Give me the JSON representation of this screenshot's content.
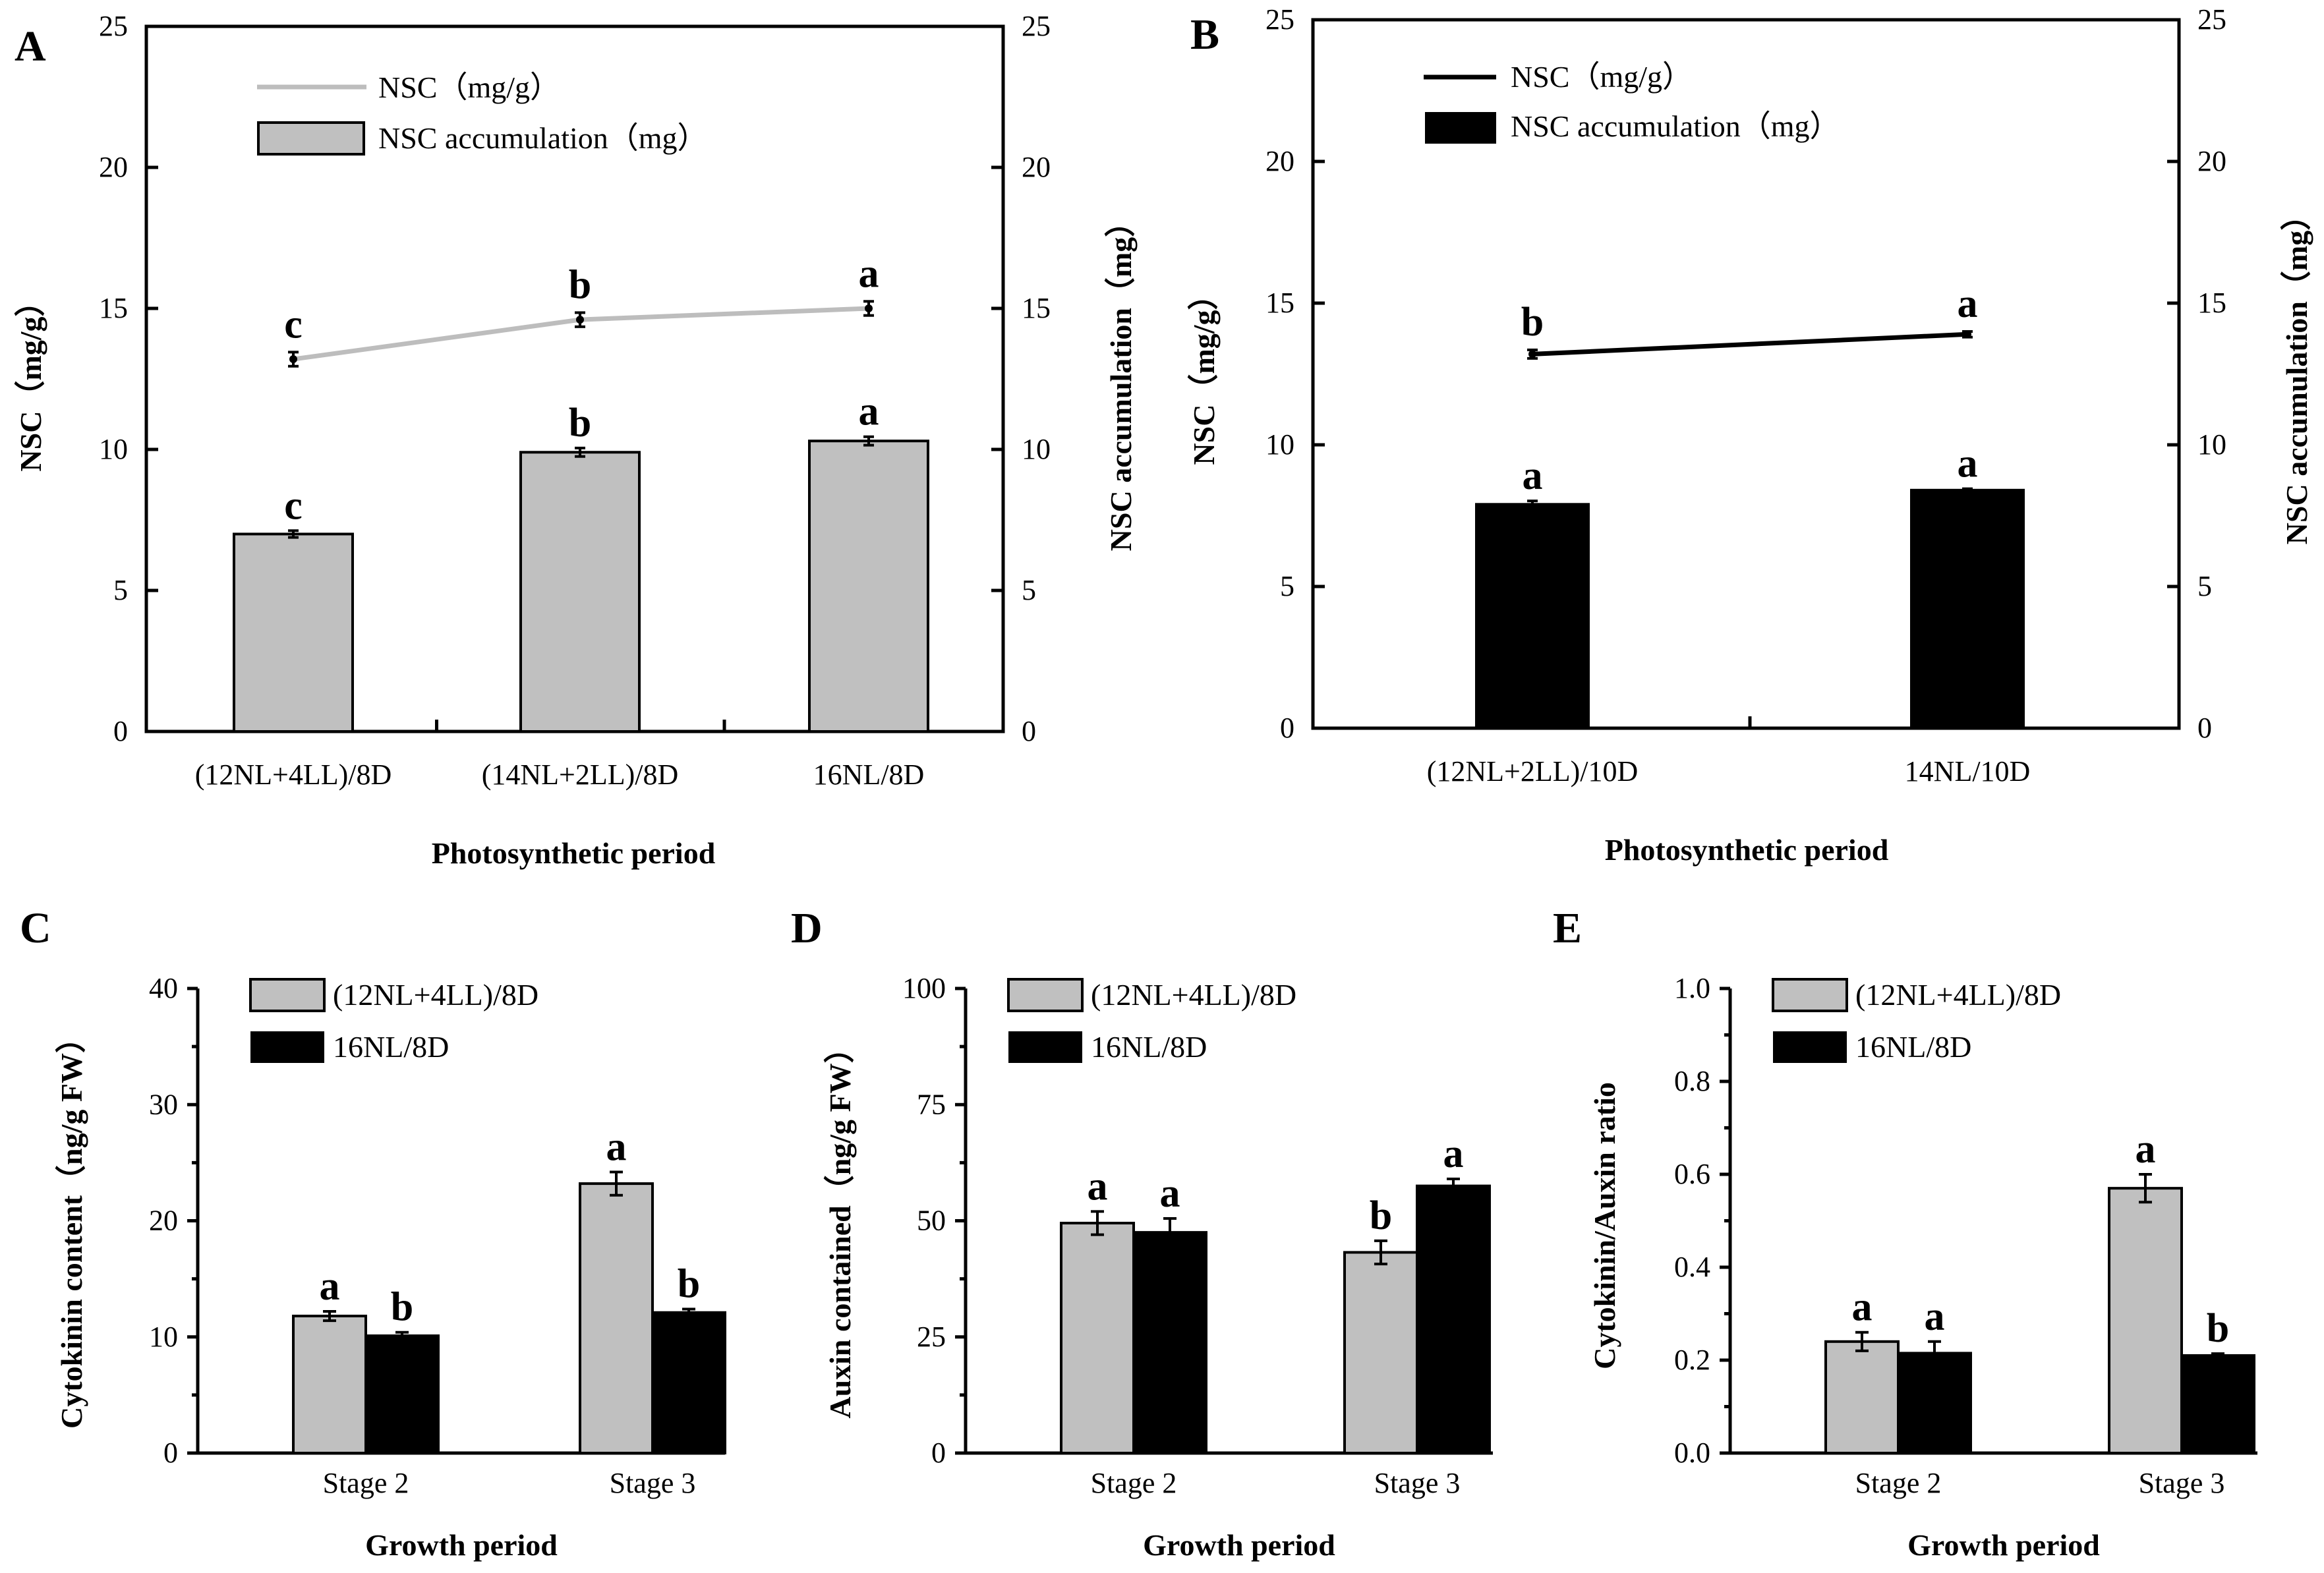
{
  "colors": {
    "gray": "#c0c0c0",
    "black": "#000000",
    "gray_line": "#bdbdbd"
  },
  "chart_data": [
    {
      "panel": "A",
      "type": "bar+line",
      "xlabel": "Photosynthetic period",
      "ylabel": "NSC（mg/g）",
      "y2label": "NSC accumulation（mg）",
      "ylim": [
        0,
        25
      ],
      "y2lim": [
        0,
        25
      ],
      "yticks": [
        "0",
        "5",
        "10",
        "15",
        "20",
        "25"
      ],
      "categories": [
        "(12NL+4LL)/8D",
        "(14NL+2LL)/8D",
        "16NL/8D"
      ],
      "legend": [
        "NSC（mg/g）",
        "NSC accumulation（mg）"
      ],
      "legend_position": "top-left",
      "line": {
        "name": "NSC（mg/g）",
        "values": [
          13.2,
          14.6,
          15.0
        ],
        "errors": [
          0.25,
          0.25,
          0.25
        ],
        "labels": [
          "c",
          "b",
          "a"
        ],
        "color": "#bdbdbd"
      },
      "bars": {
        "name": "NSC accumulation（mg）",
        "values": [
          7.0,
          9.9,
          10.3
        ],
        "errors": [
          0.12,
          0.15,
          0.15
        ],
        "labels": [
          "c",
          "b",
          "a"
        ],
        "color": "#c0c0c0"
      }
    },
    {
      "panel": "B",
      "type": "bar+line",
      "xlabel": "Photosynthetic period",
      "ylabel": "NSC（mg/g）",
      "y2label": "NSC accumulation（mg）",
      "ylim": [
        0,
        25
      ],
      "y2lim": [
        0,
        25
      ],
      "yticks": [
        "0",
        "5",
        "10",
        "15",
        "20",
        "25"
      ],
      "categories": [
        "(12NL+2LL)/10D",
        "14NL/10D"
      ],
      "legend": [
        "NSC（mg/g）",
        "NSC accumulation（mg）"
      ],
      "legend_position": "top-left",
      "line": {
        "name": "NSC（mg/g）",
        "values": [
          13.2,
          13.9
        ],
        "errors": [
          0.15,
          0.1
        ],
        "labels": [
          "b",
          "a"
        ],
        "color": "#000000"
      },
      "bars": {
        "name": "NSC accumulation（mg）",
        "values": [
          7.9,
          8.4
        ],
        "errors": [
          0.12,
          0.05
        ],
        "labels": [
          "a",
          "a"
        ],
        "color": "#000000"
      }
    },
    {
      "panel": "C",
      "type": "bar",
      "xlabel": "Growth period",
      "ylabel": "Cytokinin content（ng/g FW）",
      "ylim": [
        0,
        40
      ],
      "yticks": [
        "0",
        "10",
        "20",
        "30",
        "40"
      ],
      "categories": [
        "Stage 2",
        "Stage 3"
      ],
      "legend_position": "top-right",
      "series": [
        {
          "name": "(12NL+4LL)/8D",
          "color": "#c0c0c0",
          "values": [
            11.8,
            23.2
          ],
          "errors": [
            0.4,
            1.0
          ],
          "labels": [
            "a",
            "a"
          ]
        },
        {
          "name": "16NL/8D",
          "color": "#000000",
          "values": [
            10.1,
            12.1
          ],
          "errors": [
            0.3,
            0.3
          ],
          "labels": [
            "b",
            "b"
          ]
        }
      ]
    },
    {
      "panel": "D",
      "type": "bar",
      "xlabel": "Growth period",
      "ylabel": "Auxin contained（ng/g FW）",
      "ylim": [
        0,
        100
      ],
      "yticks": [
        "0",
        "25",
        "50",
        "75",
        "100"
      ],
      "categories": [
        "Stage 2",
        "Stage 3"
      ],
      "legend_position": "top-right",
      "series": [
        {
          "name": "(12NL+4LL)/8D",
          "color": "#c0c0c0",
          "values": [
            49.5,
            43.2
          ],
          "errors": [
            2.5,
            2.5
          ],
          "labels": [
            "a",
            "b"
          ]
        },
        {
          "name": "16NL/8D",
          "color": "#000000",
          "values": [
            47.5,
            57.5
          ],
          "errors": [
            3.0,
            1.5
          ],
          "labels": [
            "a",
            "a"
          ]
        }
      ]
    },
    {
      "panel": "E",
      "type": "bar",
      "xlabel": "Growth period",
      "ylabel": "Cytokinin/Auxin ratio",
      "ylim": [
        0,
        1.0
      ],
      "yticks": [
        "0.0",
        "0.2",
        "0.4",
        "0.6",
        "0.8",
        "1.0"
      ],
      "categories": [
        "Stage 2",
        "Stage 3"
      ],
      "legend_position": "top-right",
      "series": [
        {
          "name": "(12NL+4LL)/8D",
          "color": "#c0c0c0",
          "values": [
            0.24,
            0.57
          ],
          "errors": [
            0.02,
            0.03
          ],
          "labels": [
            "a",
            "a"
          ]
        },
        {
          "name": "16NL/8D",
          "color": "#000000",
          "values": [
            0.215,
            0.21
          ],
          "errors": [
            0.025,
            0.004
          ],
          "labels": [
            "a",
            "b"
          ]
        }
      ]
    }
  ]
}
